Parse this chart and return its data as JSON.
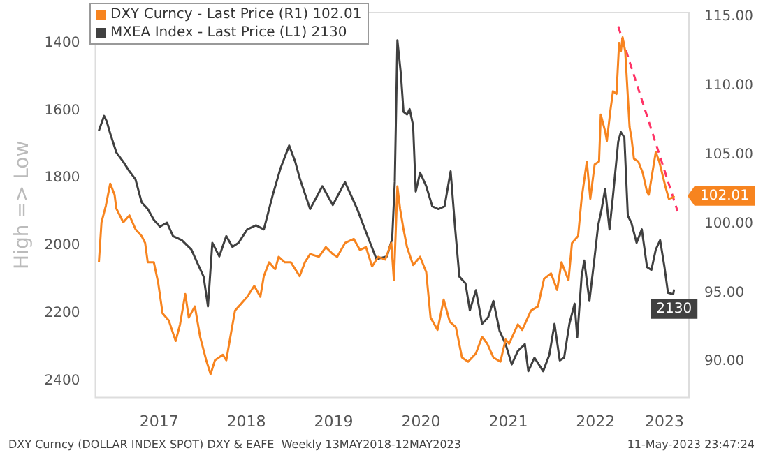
{
  "chart_data": {
    "type": "line",
    "ylabel": "High => Low",
    "legend": "top left",
    "xlim": [
      2016.77,
      2023.57
    ],
    "xticks": [
      {
        "value": 2017.5,
        "label": "2017"
      },
      {
        "value": 2018.5,
        "label": "2018"
      },
      {
        "value": 2019.5,
        "label": "2019"
      },
      {
        "value": 2020.5,
        "label": "2020"
      },
      {
        "value": 2021.5,
        "label": "2021"
      },
      {
        "value": 2022.5,
        "label": "2022"
      },
      {
        "value": 2023.29,
        "label": "2023"
      }
    ],
    "ylim": [
      2450,
      1310
    ],
    "yticks": [
      1400,
      1600,
      1800,
      2000,
      2200,
      2400
    ],
    "y2lim": [
      87.4,
      115.3
    ],
    "y2ticks": [
      {
        "value": 90,
        "label": "90.00"
      },
      {
        "value": 95,
        "label": "95.00"
      },
      {
        "value": 100,
        "label": "100.00"
      },
      {
        "value": 105,
        "label": "105.00"
      },
      {
        "value": 110,
        "label": "110.00"
      },
      {
        "value": 115,
        "label": "115.00"
      }
    ],
    "series": [
      {
        "name": "DXY Curncy - Last Price (R1) 102.01",
        "color": "#f7841f",
        "axis": "y2",
        "x": [
          2016.81,
          2016.84,
          2016.89,
          2016.94,
          2016.99,
          2017.01,
          2017.09,
          2017.16,
          2017.23,
          2017.3,
          2017.34,
          2017.37,
          2017.44,
          2017.49,
          2017.54,
          2017.61,
          2017.69,
          2017.74,
          2017.8,
          2017.84,
          2017.91,
          2017.97,
          2018.04,
          2018.09,
          2018.14,
          2018.23,
          2018.27,
          2018.33,
          2018.37,
          2018.44,
          2018.51,
          2018.59,
          2018.66,
          2018.7,
          2018.76,
          2018.83,
          2018.87,
          2018.94,
          2019.01,
          2019.11,
          2019.17,
          2019.23,
          2019.33,
          2019.41,
          2019.49,
          2019.54,
          2019.63,
          2019.73,
          2019.8,
          2019.87,
          2019.94,
          2020.01,
          2020.09,
          2020.16,
          2020.19,
          2020.23,
          2020.26,
          2020.3,
          2020.34,
          2020.41,
          2020.49,
          2020.56,
          2020.61,
          2020.69,
          2020.76,
          2020.83,
          2020.9,
          2020.97,
          2021.04,
          2021.13,
          2021.2,
          2021.26,
          2021.33,
          2021.41,
          2021.47,
          2021.51,
          2021.61,
          2021.66,
          2021.76,
          2021.84,
          2021.91,
          2021.99,
          2022.06,
          2022.11,
          2022.19,
          2022.23,
          2022.3,
          2022.34,
          2022.4,
          2022.44,
          2022.49,
          2022.54,
          2022.56,
          2022.61,
          2022.63,
          2022.67,
          2022.7,
          2022.74,
          2022.77,
          2022.79,
          2022.81,
          2022.84,
          2022.89,
          2022.91,
          2022.94,
          2022.99,
          2023.04,
          2023.09,
          2023.11,
          2023.19,
          2023.23,
          2023.3,
          2023.34,
          2023.39,
          2023.4
        ],
        "values": [
          97.2,
          100.1,
          101.3,
          102.9,
          102.1,
          101.1,
          100.1,
          100.6,
          99.6,
          99.1,
          98.6,
          97.2,
          97.2,
          95.7,
          93.5,
          93.0,
          91.5,
          92.7,
          94.9,
          93.2,
          94.0,
          91.8,
          90.1,
          89.1,
          90.1,
          90.5,
          90.1,
          92.3,
          93.7,
          94.2,
          94.7,
          95.5,
          94.7,
          96.2,
          97.2,
          96.7,
          97.6,
          97.2,
          97.2,
          96.2,
          97.2,
          97.8,
          97.6,
          98.3,
          97.8,
          97.6,
          98.6,
          98.9,
          98.1,
          98.3,
          96.9,
          97.6,
          97.4,
          98.6,
          95.9,
          102.7,
          101.1,
          99.6,
          98.3,
          97.0,
          97.6,
          96.5,
          93.2,
          92.3,
          94.5,
          92.9,
          92.5,
          90.3,
          90.0,
          90.6,
          91.8,
          91.3,
          90.3,
          90.0,
          91.6,
          91.3,
          92.7,
          92.3,
          93.7,
          94.0,
          96.0,
          96.4,
          95.2,
          97.2,
          95.9,
          98.6,
          99.1,
          101.8,
          104.5,
          101.8,
          104.3,
          104.5,
          107.9,
          106.7,
          106.0,
          108.2,
          109.6,
          109.4,
          113.1,
          112.5,
          113.5,
          112.5,
          107.0,
          106.3,
          104.7,
          104.5,
          103.7,
          102.3,
          102.1,
          105.2,
          104.5,
          102.7,
          101.8,
          101.9,
          102.01
        ],
        "value_labels": [
          null,
          null,
          null,
          null,
          null,
          null,
          null,
          null,
          null,
          null,
          null,
          null,
          null,
          null,
          null,
          null,
          null,
          null,
          null,
          null,
          null,
          null,
          null,
          null,
          null,
          null,
          null,
          null,
          null,
          null,
          null,
          null,
          null,
          null,
          null,
          null,
          null,
          null,
          null,
          null,
          null,
          null,
          null,
          null,
          null,
          null,
          null,
          null,
          null,
          null,
          null,
          null,
          null,
          null,
          null,
          null,
          null,
          null,
          null,
          null,
          null,
          null,
          null,
          null,
          null,
          null,
          null,
          null,
          null,
          null,
          null,
          null,
          null,
          null,
          null,
          null,
          null,
          null,
          null,
          null,
          null,
          null,
          null,
          null,
          null,
          null,
          null,
          null,
          null,
          null,
          null,
          null,
          null,
          null,
          null,
          null,
          null,
          null,
          null,
          null,
          null,
          null,
          null,
          null,
          null,
          null,
          null,
          null,
          null,
          null,
          null,
          null,
          null,
          null,
          "102.01"
        ]
      },
      {
        "name": "MXEA Index - Last Price (L1) 2130",
        "color": "#404040",
        "axis": "y",
        "x": [
          2016.81,
          2016.87,
          2016.9,
          2016.94,
          2017.01,
          2017.09,
          2017.16,
          2017.23,
          2017.3,
          2017.37,
          2017.44,
          2017.51,
          2017.59,
          2017.66,
          2017.76,
          2017.87,
          2017.94,
          2018.01,
          2018.06,
          2018.11,
          2018.19,
          2018.27,
          2018.34,
          2018.41,
          2018.51,
          2018.61,
          2018.7,
          2018.8,
          2018.89,
          2018.99,
          2019.06,
          2019.11,
          2019.23,
          2019.37,
          2019.49,
          2019.63,
          2019.77,
          2019.87,
          2019.99,
          2020.11,
          2020.17,
          2020.2,
          2020.23,
          2020.27,
          2020.3,
          2020.34,
          2020.37,
          2020.41,
          2020.44,
          2020.49,
          2020.56,
          2020.63,
          2020.7,
          2020.77,
          2020.84,
          2020.89,
          2020.94,
          2021.01,
          2021.06,
          2021.13,
          2021.2,
          2021.27,
          2021.33,
          2021.4,
          2021.47,
          2021.54,
          2021.61,
          2021.69,
          2021.73,
          2021.8,
          2021.9,
          2021.97,
          2022.03,
          2022.09,
          2022.14,
          2022.2,
          2022.26,
          2022.29,
          2022.34,
          2022.37,
          2022.43,
          2022.49,
          2022.53,
          2022.57,
          2022.61,
          2022.66,
          2022.7,
          2022.76,
          2022.79,
          2022.83,
          2022.87,
          2022.91,
          2022.97,
          2023.03,
          2023.09,
          2023.14,
          2023.19,
          2023.24,
          2023.29,
          2023.33,
          2023.39,
          2023.4
        ],
        "values": [
          1660,
          1616,
          1632,
          1668,
          1724,
          1752,
          1780,
          1804,
          1872,
          1892,
          1924,
          1944,
          1932,
          1972,
          1984,
          2012,
          2052,
          2092,
          2180,
          1992,
          2032,
          1972,
          2004,
          1992,
          1952,
          1940,
          1952,
          1852,
          1772,
          1704,
          1752,
          1800,
          1892,
          1824,
          1880,
          1812,
          1892,
          1960,
          2040,
          2032,
          1980,
          1812,
          1392,
          1492,
          1604,
          1612,
          1596,
          1644,
          1840,
          1784,
          1824,
          1884,
          1892,
          1884,
          1780,
          1944,
          2092,
          2112,
          2192,
          2132,
          2232,
          2212,
          2164,
          2252,
          2292,
          2352,
          2312,
          2292,
          2372,
          2332,
          2372,
          2324,
          2232,
          2340,
          2332,
          2232,
          2172,
          2272,
          2092,
          2044,
          2164,
          2032,
          1940,
          1892,
          1832,
          1952,
          1852,
          1692,
          1664,
          1680,
          1912,
          1932,
          1992,
          1952,
          2064,
          2072,
          2012,
          1984,
          2064,
          2140,
          2144,
          2130
        ],
        "value_labels": [
          null,
          null,
          null,
          null,
          null,
          null,
          null,
          null,
          null,
          null,
          null,
          null,
          null,
          null,
          null,
          null,
          null,
          null,
          null,
          null,
          null,
          null,
          null,
          null,
          null,
          null,
          null,
          null,
          null,
          null,
          null,
          null,
          null,
          null,
          null,
          null,
          null,
          null,
          null,
          null,
          null,
          null,
          null,
          null,
          null,
          null,
          null,
          null,
          null,
          null,
          null,
          null,
          null,
          null,
          null,
          null,
          null,
          null,
          null,
          null,
          null,
          null,
          null,
          null,
          null,
          null,
          null,
          null,
          null,
          null,
          null,
          null,
          null,
          null,
          null,
          null,
          null,
          null,
          null,
          null,
          null,
          null,
          null,
          null,
          null,
          null,
          null,
          null,
          null,
          null,
          null,
          null,
          null,
          null,
          null,
          null,
          null,
          null,
          null,
          null,
          null,
          "2130"
        ]
      },
      {
        "type": "line",
        "color": "#ff3366",
        "axis": "y2",
        "line_style": "dashed",
        "x": [
          2022.76,
          2023.44
        ],
        "values": [
          114.3,
          100.9
        ]
      }
    ],
    "annotations": [
      "DXY Curncy (DOLLAR INDEX SPOT) DXY & EAFE  Weekly 13MAY2018-12MAY2023",
      "11-May-2023 23:47:24"
    ]
  }
}
